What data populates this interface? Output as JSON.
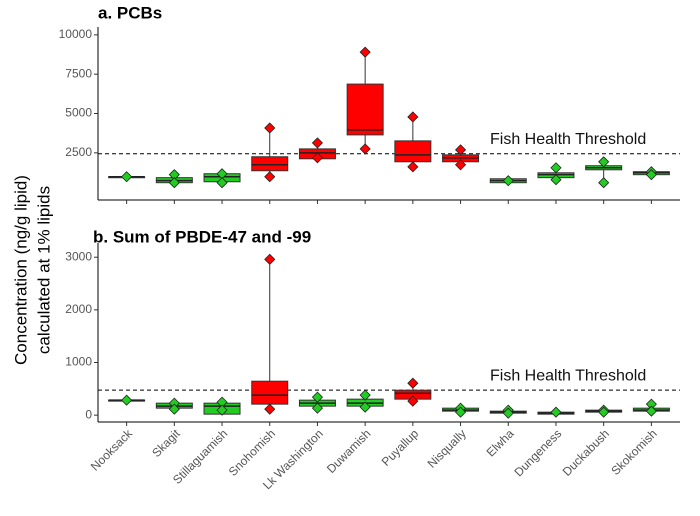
{
  "ylabel": [
    "Concentration (ng/g lipid)",
    "calculated at 1% lipids"
  ],
  "chart_data": [
    {
      "type": "box",
      "title": "a. PCBs",
      "categories": [
        null,
        null,
        null,
        null,
        null,
        null,
        null,
        null,
        null,
        null,
        null,
        null
      ],
      "colors": [
        "#22cc22",
        "#22cc22",
        "#22cc22",
        "#ff0000",
        "#ff0000",
        "#ff0000",
        "#ff0000",
        "#ff0000",
        "#22cc22",
        "#22cc22",
        "#22cc22",
        "#22cc22"
      ],
      "boxes": [
        {
          "min": 980,
          "q1": 980,
          "median": 980,
          "q3": 980,
          "max": 980,
          "points": [
            980
          ]
        },
        {
          "min": 600,
          "q1": 600,
          "median": 730,
          "q3": 920,
          "max": 1110,
          "points": [
            1110,
            600
          ]
        },
        {
          "min": 600,
          "q1": 660,
          "median": 980,
          "q3": 1170,
          "max": 1170,
          "points": [
            1170,
            600
          ]
        },
        {
          "min": 980,
          "q1": 1360,
          "median": 1740,
          "q3": 2250,
          "max": 4080,
          "points": [
            4080,
            980
          ]
        },
        {
          "min": 2120,
          "q1": 2120,
          "median": 2500,
          "q3": 2750,
          "max": 3130,
          "points": [
            3130,
            2180
          ]
        },
        {
          "min": 2750,
          "q1": 3640,
          "median": 3960,
          "q3": 6870,
          "max": 8900,
          "points": [
            8900,
            2750
          ]
        },
        {
          "min": 1610,
          "q1": 1930,
          "median": 2370,
          "q3": 3260,
          "max": 4780,
          "points": [
            4780,
            1610
          ]
        },
        {
          "min": 1740,
          "q1": 1930,
          "median": 2180,
          "q3": 2370,
          "max": 2690,
          "points": [
            2690,
            1740
          ]
        },
        {
          "min": 600,
          "q1": 600,
          "median": 730,
          "q3": 850,
          "max": 850,
          "points": [
            730
          ]
        },
        {
          "min": 790,
          "q1": 920,
          "median": 1110,
          "q3": 1230,
          "max": 1550,
          "points": [
            1550,
            790
          ]
        },
        {
          "min": 600,
          "q1": 1420,
          "median": 1550,
          "q3": 1680,
          "max": 1930,
          "points": [
            1930,
            600
          ]
        },
        {
          "min": 1110,
          "q1": 1110,
          "median": 1230,
          "q3": 1300,
          "max": 1300,
          "points": [
            1300,
            1110
          ]
        }
      ],
      "ylim": [
        -500,
        10500
      ],
      "yticks": [
        2500,
        5000,
        7500,
        10000
      ],
      "threshold": {
        "value": 2440,
        "label": "Fish Health Threshold"
      }
    },
    {
      "type": "box",
      "title": "b. Sum of PBDE-47 and -99",
      "categories": [
        "Nooksack",
        "Skagit",
        "Stillaguamish",
        "Snohomish",
        "Lk Washington",
        "Duwamish",
        "Puyallup",
        "Nisqually",
        "Elwha",
        "Dungeness",
        "Duckabush",
        "Skokomish"
      ],
      "colors": [
        "#22cc22",
        "#22cc22",
        "#22cc22",
        "#ff0000",
        "#22cc22",
        "#22cc22",
        "#ff0000",
        "#22cc22",
        "#22cc22",
        "#22cc22",
        "#22cc22",
        "#22cc22"
      ],
      "boxes": [
        {
          "min": 285,
          "q1": 285,
          "median": 285,
          "q3": 285,
          "max": 285,
          "points": [
            285
          ]
        },
        {
          "min": 114,
          "q1": 133,
          "median": 171,
          "q3": 228,
          "max": 228,
          "points": [
            228,
            114
          ]
        },
        {
          "min": 19,
          "q1": 19,
          "median": 171,
          "q3": 228,
          "max": 247,
          "points": [
            247,
            95
          ]
        },
        {
          "min": 114,
          "q1": 209,
          "median": 380,
          "q3": 645,
          "max": 2960,
          "points": [
            2960,
            114
          ]
        },
        {
          "min": 133,
          "q1": 171,
          "median": 228,
          "q3": 285,
          "max": 342,
          "points": [
            342,
            133
          ]
        },
        {
          "min": 152,
          "q1": 171,
          "median": 228,
          "q3": 304,
          "max": 380,
          "points": [
            380,
            152
          ]
        },
        {
          "min": 266,
          "q1": 304,
          "median": 417,
          "q3": 474,
          "max": 607,
          "points": [
            607,
            266
          ]
        },
        {
          "min": 57,
          "q1": 76,
          "median": 95,
          "q3": 133,
          "max": 133,
          "points": [
            133,
            57
          ]
        },
        {
          "min": 38,
          "q1": 38,
          "median": 57,
          "q3": 76,
          "max": 95,
          "points": [
            95,
            38
          ]
        },
        {
          "min": 19,
          "q1": 19,
          "median": 38,
          "q3": 57,
          "max": 57,
          "points": [
            57
          ]
        },
        {
          "min": 57,
          "q1": 57,
          "median": 76,
          "q3": 95,
          "max": 95,
          "points": [
            95,
            57
          ]
        },
        {
          "min": 76,
          "q1": 76,
          "median": 95,
          "q3": 133,
          "max": 209,
          "points": [
            209,
            76
          ]
        }
      ],
      "ylim": [
        -130,
        3270
      ],
      "yticks": [
        0,
        1000,
        2000,
        3000
      ],
      "threshold": {
        "value": 475,
        "label": "Fish Health Threshold"
      }
    }
  ]
}
